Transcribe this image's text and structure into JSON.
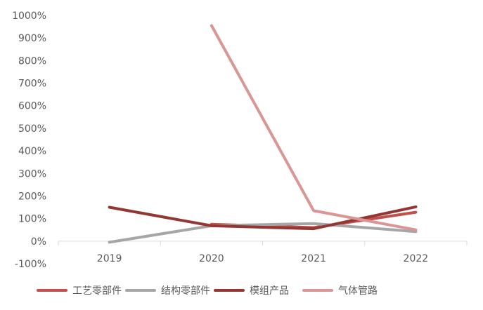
{
  "chart_data": {
    "type": "line",
    "title": "",
    "xlabel": "",
    "ylabel": "",
    "categories": [
      "2019",
      "2020",
      "2021",
      "2022"
    ],
    "y_ticks": [
      "1000%",
      "900%",
      "800%",
      "700%",
      "600%",
      "500%",
      "400%",
      "300%",
      "200%",
      "100%",
      "0%",
      "-100%"
    ],
    "ylim": [
      -100,
      1000
    ],
    "y_unit": "%",
    "grid": false,
    "legend_position": "bottom",
    "series": [
      {
        "name": "工艺零部件",
        "color": "#c0504d",
        "values": [
          null,
          75,
          60,
          128
        ]
      },
      {
        "name": "结构零部件",
        "color": "#a6a6a6",
        "values": [
          -5,
          68,
          78,
          42
        ]
      },
      {
        "name": "模组产品",
        "color": "#943634",
        "values": [
          150,
          68,
          55,
          152
        ]
      },
      {
        "name": "气体管路",
        "color": "#d99694",
        "values": [
          null,
          955,
          135,
          50
        ]
      }
    ]
  }
}
